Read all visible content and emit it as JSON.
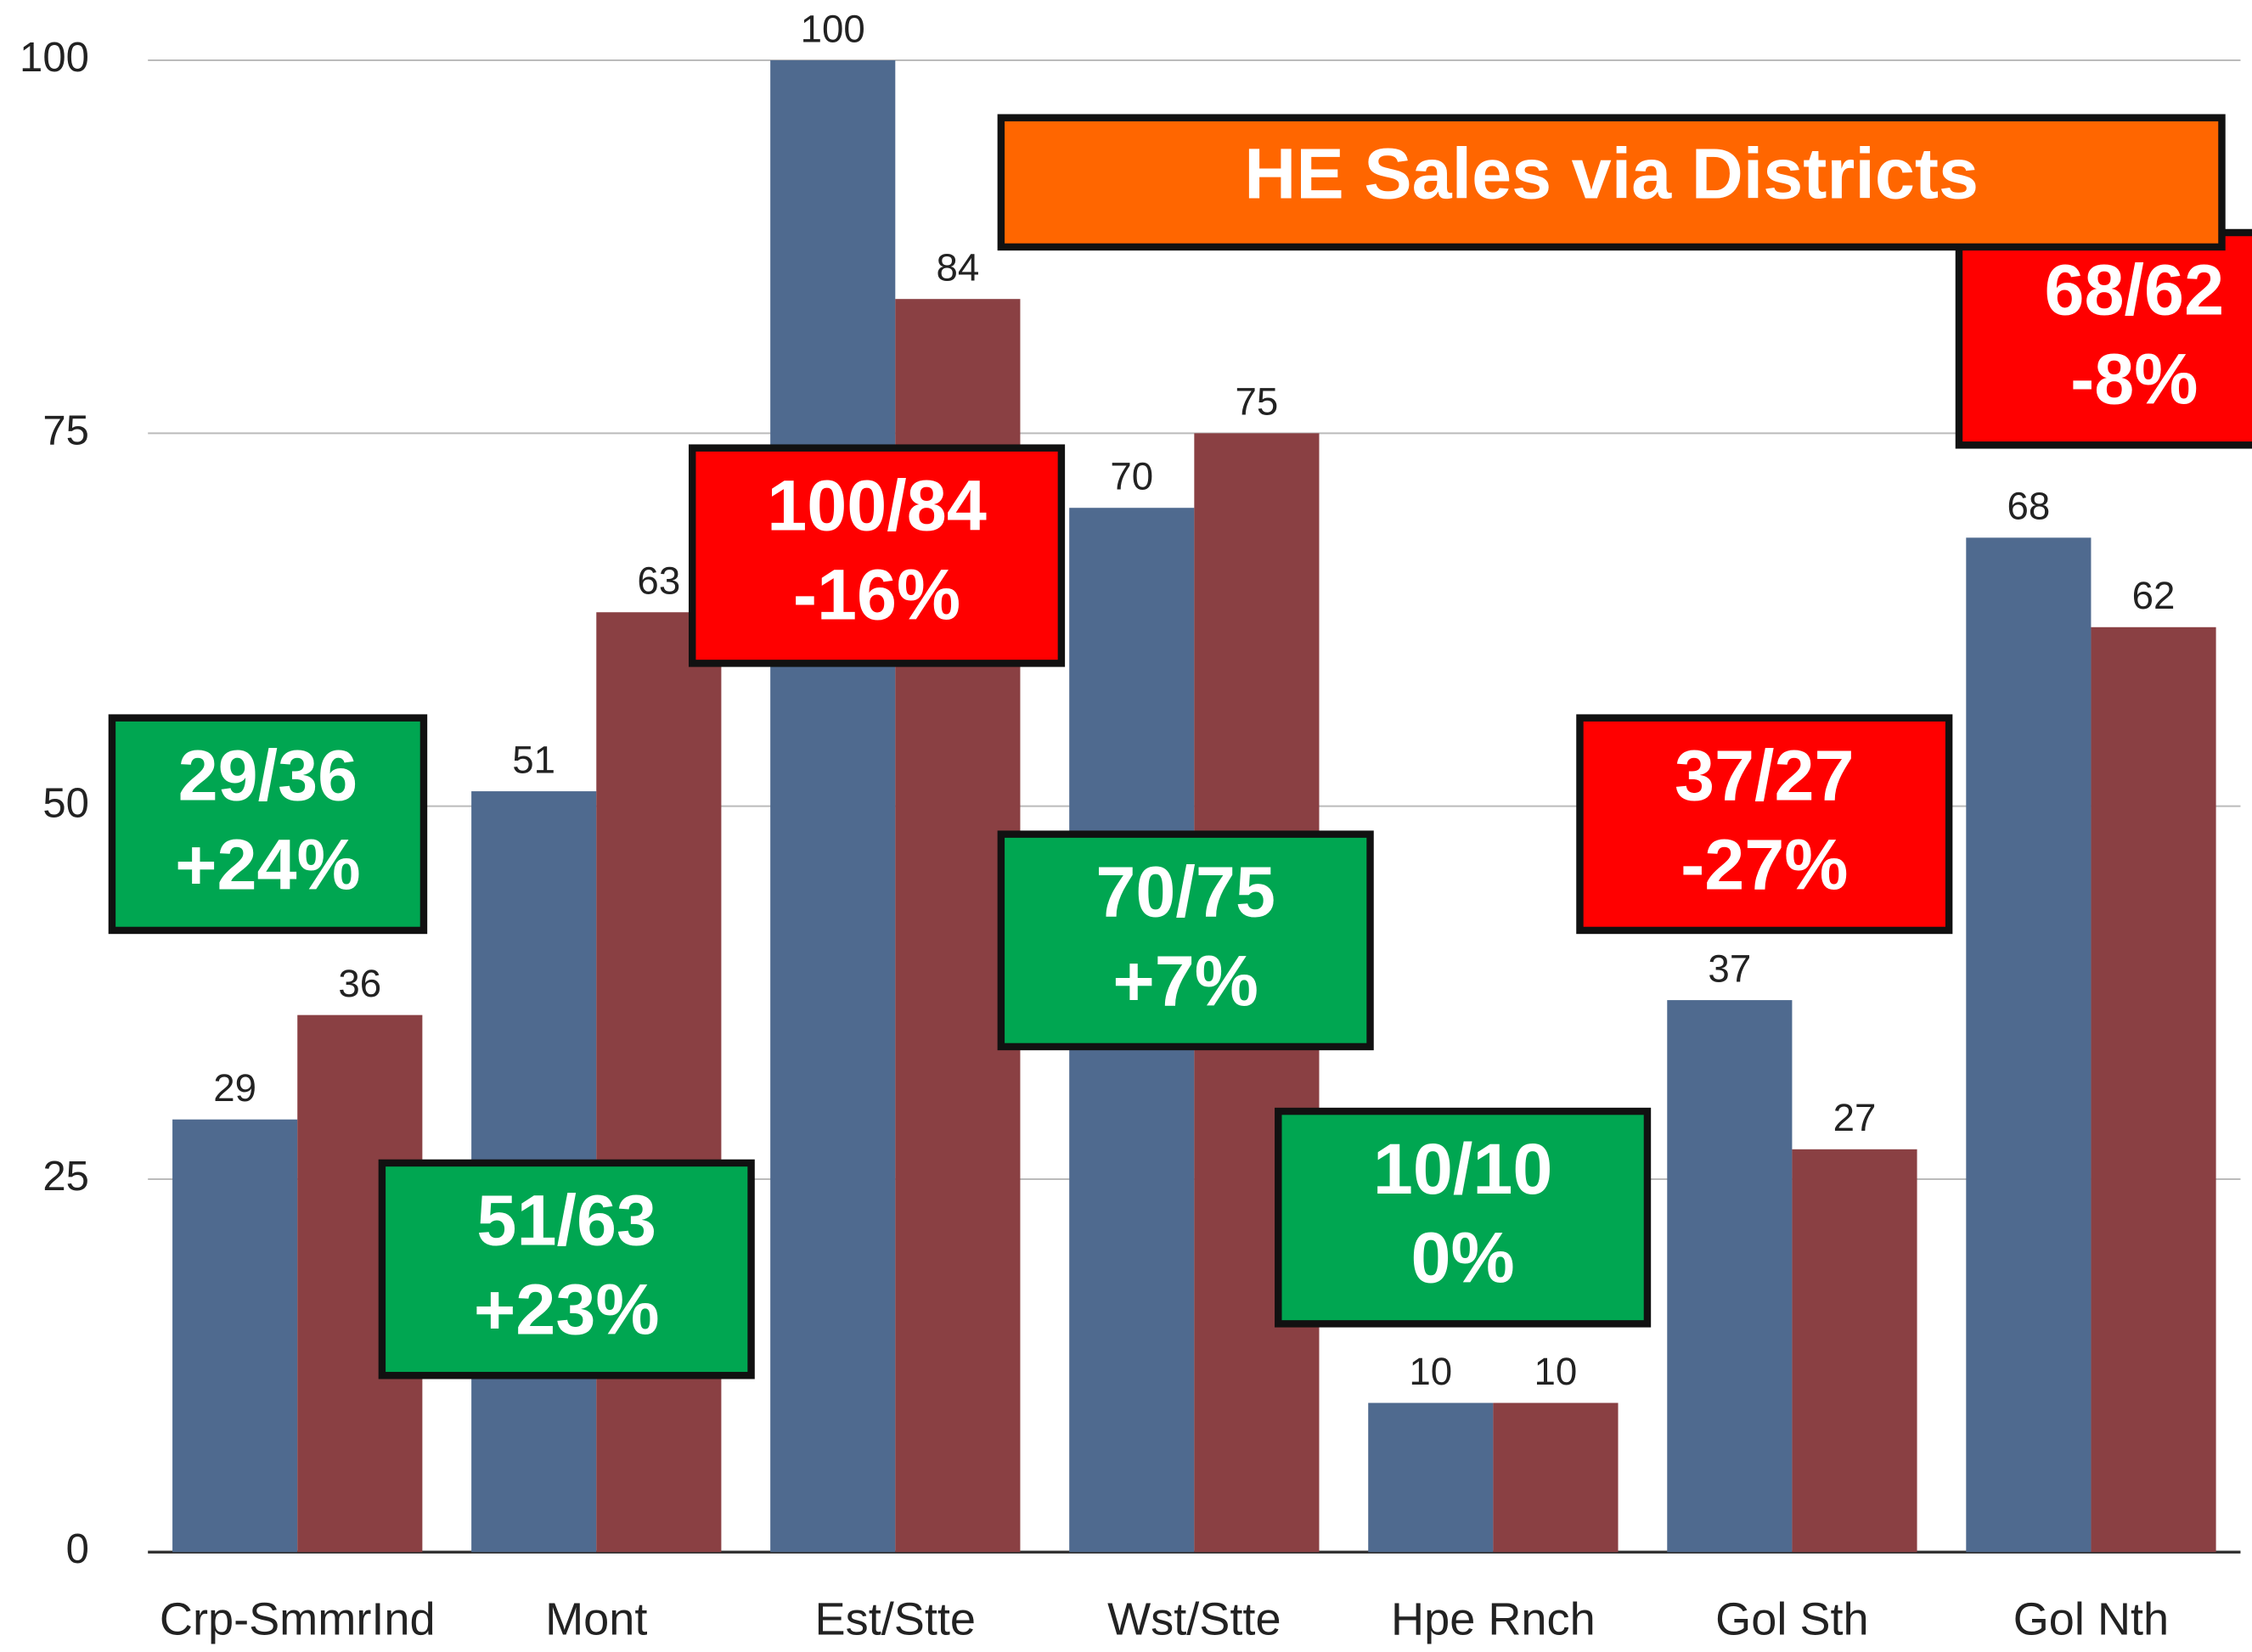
{
  "chart_data": {
    "type": "bar",
    "title": "HE Sales via Districts",
    "title_color": "#ff6600",
    "categories": [
      "Crp-SmmrInd",
      "Mont",
      "Est/Stte",
      "Wst/Stte",
      "Hpe Rnch",
      "Gol Sth",
      "Gol Nth"
    ],
    "series": [
      {
        "color": "#4f6a8f",
        "values": [
          29,
          51,
          100,
          70,
          10,
          37,
          68
        ]
      },
      {
        "color": "#8a4043",
        "values": [
          36,
          63,
          84,
          75,
          10,
          27,
          62
        ]
      }
    ],
    "ylim": [
      0,
      100
    ],
    "yticks": [
      0,
      25,
      50,
      75,
      100
    ],
    "grid": true,
    "annotations": [
      {
        "lines": [
          "29/36",
          "+24%"
        ],
        "color": "#00a651"
      },
      {
        "lines": [
          "51/63",
          "+23%"
        ],
        "color": "#00a651"
      },
      {
        "lines": [
          "100/84",
          "-16%"
        ],
        "color": "#ff0000"
      },
      {
        "lines": [
          "70/75",
          "+7%"
        ],
        "color": "#00a651"
      },
      {
        "lines": [
          "10/10",
          "0%"
        ],
        "color": "#00a651"
      },
      {
        "lines": [
          "37/27",
          "-27%"
        ],
        "color": "#ff0000"
      },
      {
        "lines": [
          "68/62",
          "-8%"
        ],
        "color": "#ff0000"
      }
    ]
  }
}
